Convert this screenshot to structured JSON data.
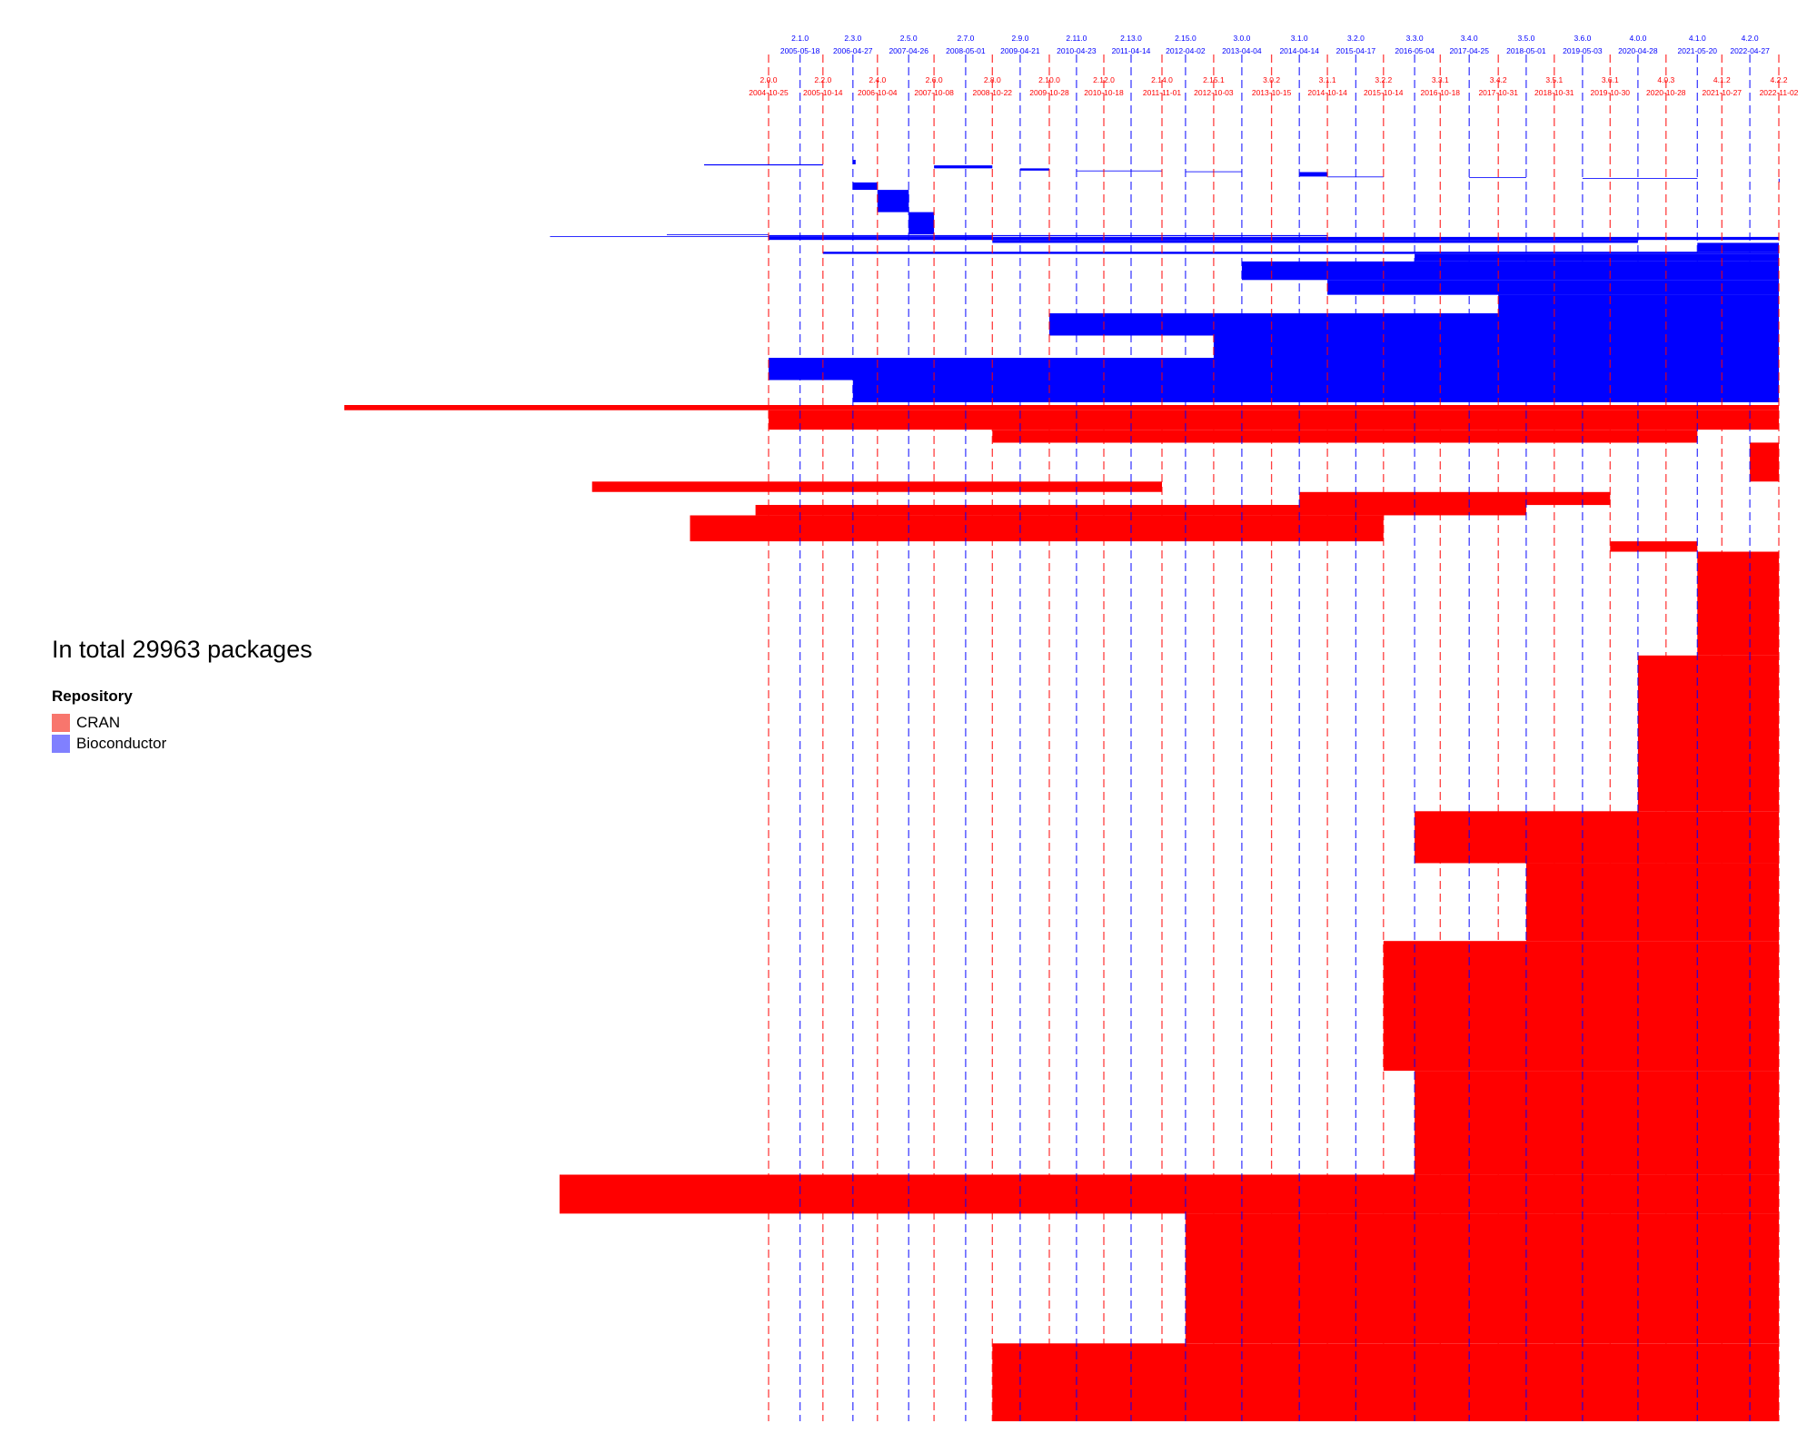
{
  "chart_data": {
    "type": "bar",
    "title": "",
    "xlabel": "",
    "ylabel": "",
    "total_text": "In total 29963 packages",
    "legend": {
      "title": "Repository",
      "placement": "left",
      "entries": [
        {
          "name": "CRAN",
          "color": "#F8766D"
        },
        {
          "name": "Bioconductor",
          "color": "#8080FF"
        }
      ]
    },
    "colors": {
      "cran": "#FF0000",
      "bioconductor": "#0000FF"
    },
    "x_range": [
      "2004-04-01",
      "2022-12-31"
    ],
    "r_releases_top": [
      {
        "version": "2.1.0",
        "date": "2005-05-18"
      },
      {
        "version": "2.3.0",
        "date": "2006-04-27"
      },
      {
        "version": "2.5.0",
        "date": "2007-04-26"
      },
      {
        "version": "2.7.0",
        "date": "2008-05-01"
      },
      {
        "version": "2.9.0",
        "date": "2009-04-21"
      },
      {
        "version": "2.11.0",
        "date": "2010-04-23"
      },
      {
        "version": "2.13.0",
        "date": "2011-04-14"
      },
      {
        "version": "2.15.0",
        "date": "2012-04-02"
      },
      {
        "version": "3.0.0",
        "date": "2013-04-04"
      },
      {
        "version": "3.1.0",
        "date": "2014-04-14"
      },
      {
        "version": "3.2.0",
        "date": "2015-04-17"
      },
      {
        "version": "3.3.0",
        "date": "2016-05-04"
      },
      {
        "version": "3.4.0",
        "date": "2017-04-25"
      },
      {
        "version": "3.5.0",
        "date": "2018-05-01"
      },
      {
        "version": "3.6.0",
        "date": "2019-05-03"
      },
      {
        "version": "4.0.0",
        "date": "2020-04-28"
      },
      {
        "version": "4.1.0",
        "date": "2021-05-20"
      },
      {
        "version": "4.2.0",
        "date": "2022-04-27"
      }
    ],
    "r_releases_bottom": [
      {
        "version": "2.0.0",
        "date": "2004-10-25"
      },
      {
        "version": "2.2.0",
        "date": "2005-10-14"
      },
      {
        "version": "2.4.0",
        "date": "2006-10-04"
      },
      {
        "version": "2.6.0",
        "date": "2007-10-08"
      },
      {
        "version": "2.8.0",
        "date": "2008-10-22"
      },
      {
        "version": "2.10.0",
        "date": "2009-10-28"
      },
      {
        "version": "2.12.0",
        "date": "2010-10-18"
      },
      {
        "version": "2.14.0",
        "date": "2011-11-01"
      },
      {
        "version": "2.15.1",
        "date": "2012-10-03"
      },
      {
        "version": "3.0.2",
        "date": "2013-10-15"
      },
      {
        "version": "3.1.1",
        "date": "2014-10-14"
      },
      {
        "version": "3.2.2",
        "date": "2015-10-14"
      },
      {
        "version": "3.3.1",
        "date": "2016-10-18"
      },
      {
        "version": "3.4.2",
        "date": "2017-10-31"
      },
      {
        "version": "3.5.1",
        "date": "2018-10-31"
      },
      {
        "version": "3.6.1",
        "date": "2019-10-30"
      },
      {
        "version": "4.0.3",
        "date": "2020-10-28"
      },
      {
        "version": "4.1.2",
        "date": "2021-10-27"
      },
      {
        "version": "4.2.2",
        "date": "2022-11-02"
      }
    ],
    "bioconductor_bands": [
      {
        "start": "2006-04-27",
        "end": "2006-05-15",
        "weight": 0.6
      },
      {
        "start": "2003-09-01",
        "end": "2005-10-14",
        "weight": 0.15
      },
      {
        "start": "2007-10-08",
        "end": "2008-10-22",
        "weight": 0.4
      },
      {
        "start": "2009-04-21",
        "end": "2009-10-28",
        "weight": 0.3
      },
      {
        "start": "2010-04-23",
        "end": "2011-11-01",
        "weight": 0.1
      },
      {
        "start": "2012-04-02",
        "end": "2013-04-04",
        "weight": 0.1
      },
      {
        "start": "2014-04-14",
        "end": "2014-10-14",
        "weight": 0.6
      },
      {
        "start": "2014-10-14",
        "end": "2015-10-14",
        "weight": 0.1
      },
      {
        "start": "2017-04-25",
        "end": "2018-05-01",
        "weight": 0.1
      },
      {
        "start": "2019-05-03",
        "end": "2021-05-20",
        "weight": 0.1
      },
      {
        "start": "2022-11-01",
        "end": "2022-11-02",
        "weight": 0.5
      },
      {
        "start": "2006-04-27",
        "end": "2006-10-04",
        "weight": 1.0
      },
      {
        "start": "2006-10-04",
        "end": "2007-04-26",
        "weight": 3.0
      },
      {
        "start": "2007-04-26",
        "end": "2007-10-08",
        "weight": 3.0
      },
      {
        "start": "2003-01-01",
        "end": "2004-10-25",
        "weight": 0.1
      },
      {
        "start": "2004-10-25",
        "end": "2014-10-14",
        "weight": 0.15
      },
      {
        "start": "2000-12-01",
        "end": "2008-10-22",
        "weight": 0.1
      },
      {
        "start": "2004-10-25",
        "end": "2022-11-02",
        "weight": 0.4
      },
      {
        "start": "2008-10-22",
        "end": "2020-04-28",
        "weight": 0.4
      },
      {
        "start": "2021-05-20",
        "end": "2022-11-02",
        "weight": 1.2
      },
      {
        "start": "2005-10-14",
        "end": "2022-11-02",
        "weight": 0.3
      },
      {
        "start": "2016-05-04",
        "end": "2022-11-02",
        "weight": 1.0
      },
      {
        "start": "2013-04-04",
        "end": "2022-11-02",
        "weight": 2.5
      },
      {
        "start": "2014-10-14",
        "end": "2022-11-02",
        "weight": 2.0
      },
      {
        "start": "2017-10-31",
        "end": "2022-11-02",
        "weight": 2.5
      },
      {
        "start": "2009-10-28",
        "end": "2022-11-02",
        "weight": 3.0
      },
      {
        "start": "2012-10-03",
        "end": "2022-11-02",
        "weight": 3.0
      },
      {
        "start": "2004-10-25",
        "end": "2022-11-02",
        "weight": 3.0
      },
      {
        "start": "2006-04-27",
        "end": "2022-11-02",
        "weight": 3.0
      }
    ],
    "cran_bands": [
      {
        "start": "1997-04-01",
        "end": "2022-11-02",
        "weight": 0.4
      },
      {
        "start": "2004-10-25",
        "end": "2022-11-02",
        "weight": 1.5
      },
      {
        "start": "2008-10-22",
        "end": "2021-05-20",
        "weight": 1.0
      },
      {
        "start": "2022-04-27",
        "end": "2022-11-02",
        "weight": 3.0
      },
      {
        "start": "2001-09-01",
        "end": "2011-11-01",
        "weight": 0.8
      },
      {
        "start": "2014-04-14",
        "end": "2019-10-30",
        "weight": 1.0
      },
      {
        "start": "2004-08-01",
        "end": "2018-05-01",
        "weight": 0.8
      },
      {
        "start": "2003-06-01",
        "end": "2015-10-14",
        "weight": 2.0
      },
      {
        "start": "2019-10-30",
        "end": "2021-05-20",
        "weight": 0.8
      },
      {
        "start": "2021-05-20",
        "end": "2022-11-02",
        "weight": 8.0
      },
      {
        "start": "2020-04-28",
        "end": "2022-11-02",
        "weight": 12.0
      },
      {
        "start": "2016-05-04",
        "end": "2022-11-02",
        "weight": 4.0
      },
      {
        "start": "2018-05-01",
        "end": "2022-11-02",
        "weight": 6.0
      },
      {
        "start": "2015-10-14",
        "end": "2022-11-02",
        "weight": 10.0
      },
      {
        "start": "2016-05-04",
        "end": "2022-11-02",
        "weight": 8.0
      },
      {
        "start": "2001-02-01",
        "end": "2022-11-02",
        "weight": 3.0
      },
      {
        "start": "2012-04-02",
        "end": "2022-11-02",
        "weight": 10.0
      },
      {
        "start": "2008-10-22",
        "end": "2022-11-02",
        "weight": 6.0
      }
    ]
  }
}
